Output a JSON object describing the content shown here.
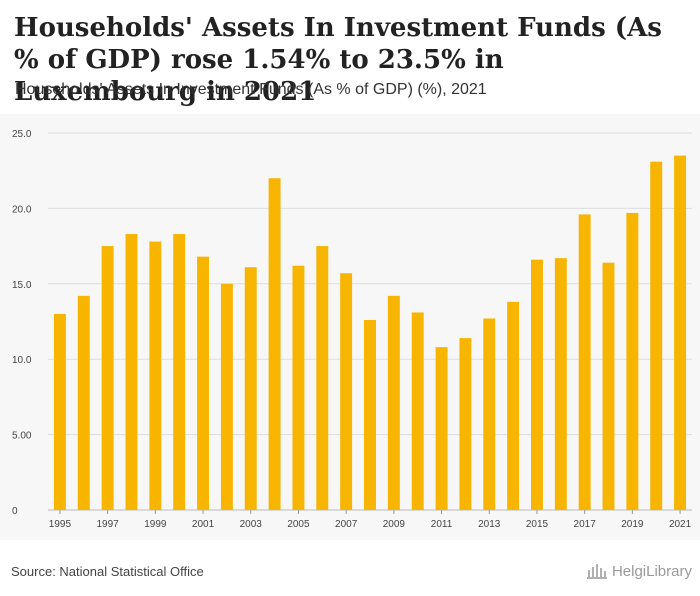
{
  "header": {
    "title": "Households' Assets In Investment Funds (As % of GDP) rose 1.54% to 23.5% in Luxembourg in 2021",
    "subtitle": "Households' Assets In Investment Funds (As % of GDP) (%), 2021"
  },
  "footer": {
    "source": "Source: National Statistical Office",
    "logo_text": "HelgiLibrary"
  },
  "colors": {
    "bar": "#f7b500",
    "grid": "#dddddd",
    "axis_text": "#444444",
    "plot_bg": "#f7f7f7"
  },
  "chart_data": {
    "type": "bar",
    "title": "Households' Assets In Investment Funds (As % of GDP) (%), 2021",
    "xlabel": "",
    "ylabel": "",
    "ylim": [
      0,
      25
    ],
    "grid": true,
    "y_ticks": [
      0,
      5,
      10,
      15,
      20,
      25
    ],
    "y_tick_labels": [
      "0",
      "5.00",
      "10.0",
      "15.0",
      "20.0",
      "25.0"
    ],
    "categories": [
      "1995",
      "1996",
      "1997",
      "1998",
      "1999",
      "2000",
      "2001",
      "2002",
      "2003",
      "2004",
      "2005",
      "2006",
      "2007",
      "2008",
      "2009",
      "2010",
      "2011",
      "2012",
      "2013",
      "2014",
      "2015",
      "2016",
      "2017",
      "2018",
      "2019",
      "2020",
      "2021"
    ],
    "x_tick_labels": [
      "1995",
      "1997",
      "1999",
      "2001",
      "2003",
      "2005",
      "2007",
      "2009",
      "2011",
      "2013",
      "2015",
      "2017",
      "2019",
      "2021"
    ],
    "values": [
      13.0,
      14.2,
      17.5,
      18.3,
      17.8,
      18.3,
      16.8,
      15.0,
      16.1,
      22.0,
      16.2,
      17.5,
      15.7,
      12.6,
      14.2,
      13.1,
      10.8,
      11.4,
      12.7,
      13.8,
      16.6,
      16.7,
      19.6,
      16.4,
      19.7,
      23.1,
      23.5
    ]
  }
}
